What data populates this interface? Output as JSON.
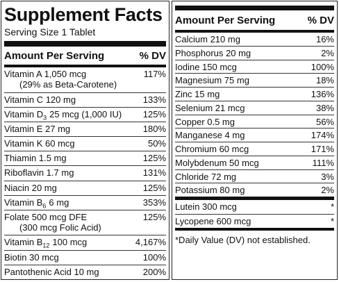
{
  "left": {
    "title": "Supplement Facts",
    "serving_size": "Serving Size 1 Tablet",
    "header": {
      "amount": "Amount Per Serving",
      "dv": "% DV"
    },
    "rows": [
      {
        "name": "Vitamin A 1,050 mcg",
        "note": "(29% as Beta-Carotene)",
        "dv": "117%"
      },
      {
        "name": "Vitamin C 120 mg",
        "dv": "133%"
      },
      {
        "name": "Vitamin D",
        "sub": "3",
        "amount": "25 mcg (1,000 IU)",
        "dv": "125%"
      },
      {
        "name": "Vitamin E 27 mg",
        "dv": "180%"
      },
      {
        "name": "Vitamin K 60 mcg",
        "dv": "50%"
      },
      {
        "name": "Thiamin 1.5 mg",
        "dv": "125%"
      },
      {
        "name": "Riboflavin 1.7 mg",
        "dv": "131%"
      },
      {
        "name": "Niacin 20 mg",
        "dv": "125%"
      },
      {
        "name": "Vitamin B",
        "sub": "6",
        "amount": "6 mg",
        "dv": "353%"
      },
      {
        "name": "Folate 500 mcg DFE",
        "note": "(300 mcg Folic Acid)",
        "dv": "125%"
      },
      {
        "name": "Vitamin B",
        "sub": "12",
        "amount": "100 mcg",
        "dv": "4,167%"
      },
      {
        "name": "Biotin 30 mcg",
        "dv": "100%"
      },
      {
        "name": "Pantothenic Acid 10 mg",
        "dv": "200%"
      }
    ]
  },
  "right": {
    "header": {
      "amount": "Amount Per Serving",
      "dv": "% DV"
    },
    "rows": [
      {
        "name": "Calcium 210 mg",
        "dv": "16%"
      },
      {
        "name": "Phosphorus 20 mg",
        "dv": "2%"
      },
      {
        "name": "Iodine 150 mcg",
        "dv": "100%"
      },
      {
        "name": "Magnesium 75 mg",
        "dv": "18%"
      },
      {
        "name": "Zinc 15 mg",
        "dv": "136%"
      },
      {
        "name": "Selenium 21 mcg",
        "dv": "38%"
      },
      {
        "name": "Copper 0.5 mg",
        "dv": "56%"
      },
      {
        "name": "Manganese 4 mg",
        "dv": "174%"
      },
      {
        "name": "Chromium 60 mcg",
        "dv": "171%"
      },
      {
        "name": "Molybdenum 50 mcg",
        "dv": "111%"
      },
      {
        "name": "Chloride 72 mg",
        "dv": "3%"
      },
      {
        "name": "Potassium 80 mg",
        "dv": "2%"
      }
    ],
    "other_rows": [
      {
        "name": "Lutein 300 mcg",
        "dv": "*"
      },
      {
        "name": "Lycopene 600 mcg",
        "dv": "*"
      }
    ],
    "footnote": "*Daily Value (DV) not established."
  }
}
